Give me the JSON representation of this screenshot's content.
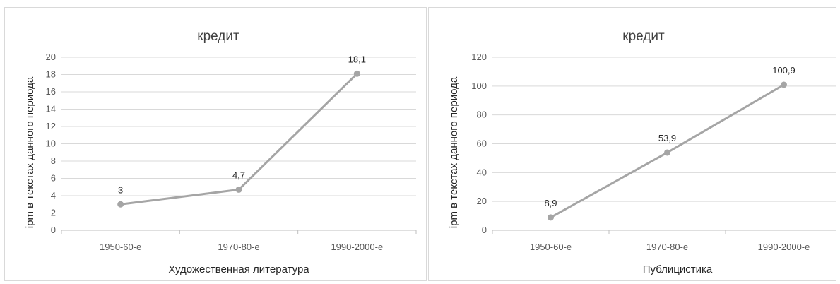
{
  "chart_data": [
    {
      "type": "line",
      "title": "кредит",
      "xlabel": "Художественная литература",
      "ylabel": "ipm в текстах данного периода",
      "categories": [
        "1950-60-е",
        "1970-80-е",
        "1990-2000-е"
      ],
      "values": [
        3,
        4.7,
        18.1
      ],
      "data_labels": [
        "3",
        "4,7",
        "18,1"
      ],
      "ylim": [
        0,
        20
      ],
      "yticks": [
        0,
        2,
        4,
        6,
        8,
        10,
        12,
        14,
        16,
        18,
        20
      ],
      "grid": true,
      "line_color": "#a5a5a5",
      "marker_color": "#a5a5a5"
    },
    {
      "type": "line",
      "title": "кредит",
      "xlabel": "Публицистика",
      "ylabel": "ipm в текстах данного периода",
      "categories": [
        "1950-60-е",
        "1970-80-е",
        "1990-2000-е"
      ],
      "values": [
        8.9,
        53.9,
        100.9
      ],
      "data_labels": [
        "8,9",
        "53,9",
        "100,9"
      ],
      "ylim": [
        0,
        120
      ],
      "yticks": [
        0,
        20,
        40,
        60,
        80,
        100,
        120
      ],
      "grid": true,
      "line_color": "#a5a5a5",
      "marker_color": "#a5a5a5"
    }
  ]
}
